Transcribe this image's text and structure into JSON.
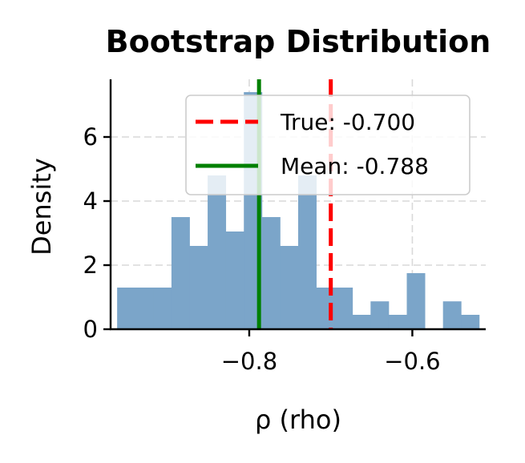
{
  "chart_data": {
    "type": "bar",
    "subtype": "histogram",
    "title": "Bootstrap Distribution",
    "xlabel": "ρ (rho)",
    "ylabel": "Density",
    "xlim": [
      -0.97,
      -0.51
    ],
    "ylim": [
      0,
      7.8
    ],
    "grid": true,
    "bar_color": "#7ba5c9",
    "xticks": [
      {
        "value": -0.8,
        "label": "−0.8"
      },
      {
        "value": -0.6,
        "label": "−0.6"
      }
    ],
    "yticks": [
      {
        "value": 0,
        "label": "0"
      },
      {
        "value": 2,
        "label": "2"
      },
      {
        "value": 4,
        "label": "4"
      },
      {
        "value": 6,
        "label": "6"
      }
    ],
    "bins": [
      {
        "start": -0.962,
        "end": -0.9398,
        "density": 1.3
      },
      {
        "start": -0.9398,
        "end": -0.9176,
        "density": 1.3
      },
      {
        "start": -0.9176,
        "end": -0.8954,
        "density": 1.3
      },
      {
        "start": -0.8954,
        "end": -0.8732,
        "density": 3.5
      },
      {
        "start": -0.8732,
        "end": -0.851,
        "density": 2.6
      },
      {
        "start": -0.851,
        "end": -0.8288,
        "density": 4.8
      },
      {
        "start": -0.8288,
        "end": -0.8066,
        "density": 3.05
      },
      {
        "start": -0.8066,
        "end": -0.7844,
        "density": 7.4
      },
      {
        "start": -0.7844,
        "end": -0.7622,
        "density": 3.5
      },
      {
        "start": -0.7622,
        "end": -0.74,
        "density": 2.6
      },
      {
        "start": -0.74,
        "end": -0.7178,
        "density": 4.8
      },
      {
        "start": -0.7178,
        "end": -0.6956,
        "density": 1.3
      },
      {
        "start": -0.6956,
        "end": -0.6734,
        "density": 1.3
      },
      {
        "start": -0.6734,
        "end": -0.6512,
        "density": 0.45
      },
      {
        "start": -0.6512,
        "end": -0.629,
        "density": 0.87
      },
      {
        "start": -0.629,
        "end": -0.6068,
        "density": 0.45
      },
      {
        "start": -0.6068,
        "end": -0.5846,
        "density": 1.75
      },
      {
        "start": -0.5846,
        "end": -0.5624,
        "density": 0.0
      },
      {
        "start": -0.5624,
        "end": -0.5402,
        "density": 0.87
      },
      {
        "start": -0.5402,
        "end": -0.518,
        "density": 0.45
      }
    ],
    "reference_lines": [
      {
        "name": "true",
        "label": "True: -0.700",
        "value": -0.7,
        "color": "#ff0000",
        "style": "dashed"
      },
      {
        "name": "mean",
        "label": "Mean: -0.788",
        "value": -0.788,
        "color": "#008000",
        "style": "solid"
      }
    ],
    "legend_position": "top-right"
  }
}
